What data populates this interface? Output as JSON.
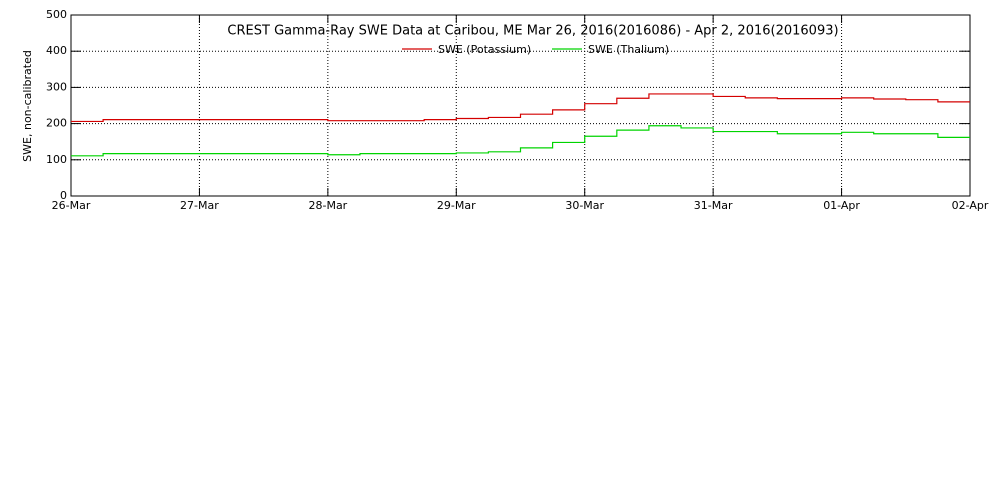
{
  "chart_data": {
    "type": "line",
    "title": "CREST Gamma-Ray SWE Data at Caribou, ME   Mar 26, 2016(2016086) - Apr  2, 2016(2016093)",
    "y_label": "SWE, non-calibrated",
    "step": true,
    "grid": true,
    "legend": "top",
    "x": [
      0,
      0.25,
      0.5,
      0.75,
      1,
      1.25,
      1.5,
      1.75,
      2,
      2.25,
      2.5,
      2.75,
      3,
      3.25,
      3.5,
      3.75,
      4,
      4.25,
      4.5,
      4.75,
      5,
      5.25,
      5.5,
      5.75,
      6,
      6.25,
      6.5,
      6.75,
      7
    ],
    "xlim": [
      0,
      7
    ],
    "xticks": [
      {
        "value": 0,
        "label": "26-Mar"
      },
      {
        "value": 1,
        "label": "27-Mar"
      },
      {
        "value": 2,
        "label": "28-Mar"
      },
      {
        "value": 3,
        "label": "29-Mar"
      },
      {
        "value": 4,
        "label": "30-Mar"
      },
      {
        "value": 5,
        "label": "31-Mar"
      },
      {
        "value": 6,
        "label": "01-Apr"
      },
      {
        "value": 7,
        "label": "02-Apr"
      }
    ],
    "ylim": [
      0,
      500
    ],
    "yticks": [
      0,
      100,
      200,
      300,
      400,
      500
    ],
    "series": [
      {
        "name": "SWE (Potassium)",
        "color": "#d40000",
        "values": [
          206,
          211,
          211,
          211,
          211,
          211,
          211,
          211,
          208,
          208,
          208,
          211,
          214,
          217,
          226,
          238,
          255,
          270,
          282,
          282,
          275,
          271,
          269,
          269,
          271,
          268,
          266,
          260,
          260
        ]
      },
      {
        "name": "SWE (Thalium)",
        "color": "#00d400",
        "values": [
          111,
          117,
          117,
          117,
          117,
          117,
          117,
          117,
          114,
          117,
          117,
          117,
          119,
          122,
          133,
          148,
          165,
          182,
          194,
          188,
          178,
          178,
          172,
          172,
          176,
          172,
          172,
          162,
          162
        ]
      }
    ]
  }
}
